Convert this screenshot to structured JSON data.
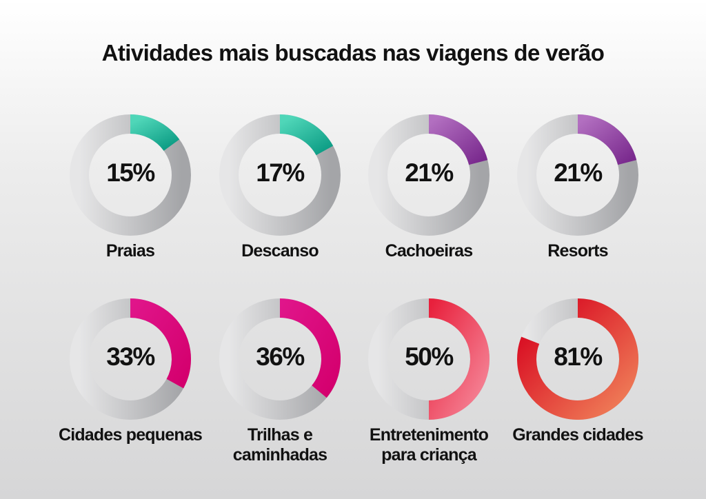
{
  "chart_data": {
    "type": "donut",
    "title": "Atividades mais buscadas nas viagens de verão",
    "unit": "%",
    "items": [
      {
        "label": "Praias",
        "value": 15,
        "value_text": "15%",
        "colors": [
          "#4fd6b8",
          "#0e9e86"
        ]
      },
      {
        "label": "Descanso",
        "value": 17,
        "value_text": "17%",
        "colors": [
          "#4fd6b8",
          "#0e9e86"
        ]
      },
      {
        "label": "Cachoeiras",
        "value": 21,
        "value_text": "21%",
        "colors": [
          "#b26fc0",
          "#7a2a8e"
        ]
      },
      {
        "label": "Resorts",
        "value": 21,
        "value_text": "21%",
        "colors": [
          "#b26fc0",
          "#7a2a8e"
        ]
      },
      {
        "label": "Cidades pequenas",
        "value": 33,
        "value_text": "33%",
        "colors": [
          "#e0158a",
          "#d4006e"
        ]
      },
      {
        "label": "Trilhas e caminhadas",
        "value": 36,
        "value_text": "36%",
        "colors": [
          "#e0158a",
          "#d4006e"
        ]
      },
      {
        "label": "Entretenimento para criança",
        "value": 50,
        "value_text": "50%",
        "colors": [
          "#e8203c",
          "#f58597"
        ]
      },
      {
        "label": "Grandes cidades",
        "value": 81,
        "value_text": "81%",
        "colors": [
          "#d6001c",
          "#f0825a"
        ]
      }
    ],
    "remainder_colors": [
      "#e6e6e7",
      "#a4a5a8"
    ]
  }
}
